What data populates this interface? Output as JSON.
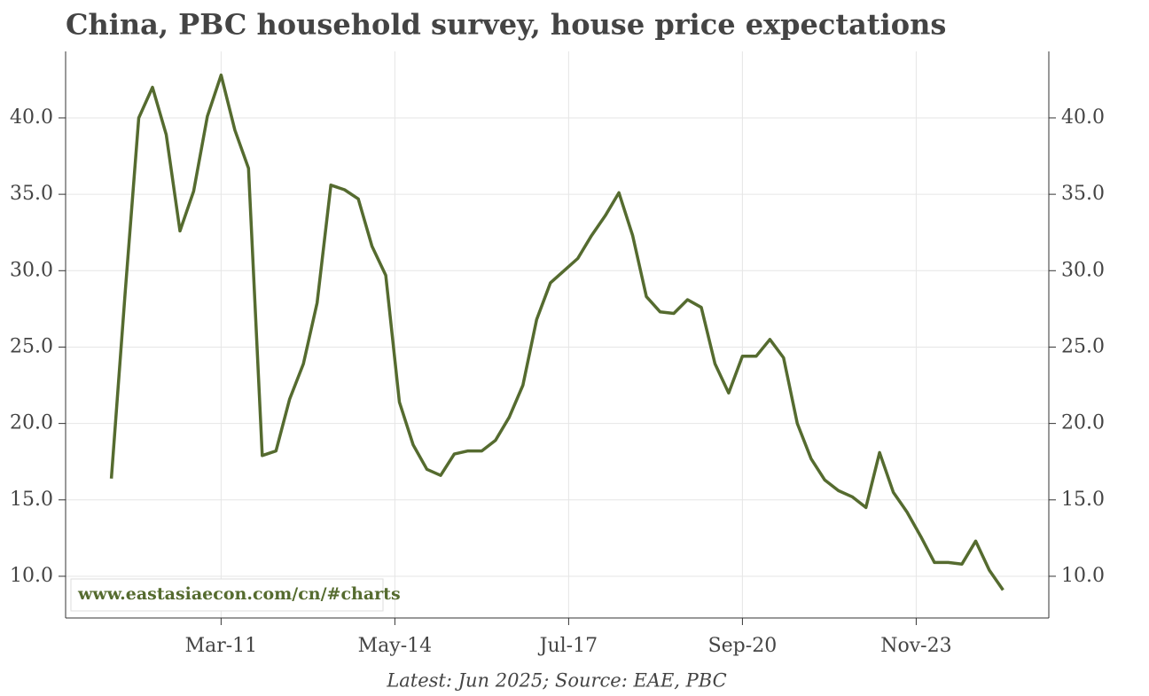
{
  "chart_data": {
    "type": "line",
    "title": "China, PBC household survey, house price expectations",
    "footer": "Latest: Jun 2025; Source: EAE, PBC",
    "watermark": "www.eastasiaecon.com/cn/#charts",
    "x": [
      "2009-03",
      "2009-06",
      "2009-09",
      "2009-12",
      "2010-03",
      "2010-06",
      "2010-09",
      "2010-12",
      "2011-03",
      "2011-06",
      "2011-09",
      "2011-12",
      "2012-03",
      "2012-06",
      "2012-09",
      "2012-12",
      "2013-03",
      "2013-06",
      "2013-09",
      "2013-12",
      "2014-03",
      "2014-06",
      "2014-09",
      "2014-12",
      "2015-03",
      "2015-06",
      "2015-09",
      "2015-12",
      "2016-03",
      "2016-06",
      "2016-09",
      "2016-12",
      "2017-03",
      "2017-06",
      "2017-09",
      "2017-12",
      "2018-03",
      "2018-06",
      "2018-09",
      "2018-12",
      "2019-03",
      "2019-06",
      "2019-09",
      "2019-12",
      "2020-03",
      "2020-06",
      "2020-09",
      "2020-12",
      "2021-03",
      "2021-06",
      "2021-09",
      "2021-12",
      "2022-03",
      "2022-06",
      "2022-09",
      "2022-12",
      "2023-03",
      "2023-06",
      "2023-09",
      "2023-12",
      "2024-03",
      "2024-06",
      "2024-09",
      "2024-12",
      "2025-03",
      "2025-06"
    ],
    "series": [
      {
        "name": "House price expectations",
        "color": "#556b2f",
        "values": [
          16.4,
          28.5,
          40.0,
          42.0,
          38.9,
          32.6,
          35.2,
          40.1,
          42.8,
          39.2,
          36.7,
          17.9,
          18.2,
          21.6,
          23.9,
          27.9,
          35.6,
          35.3,
          34.7,
          31.6,
          29.7,
          21.4,
          18.6,
          17.0,
          16.6,
          18.0,
          18.2,
          18.2,
          18.9,
          20.4,
          22.5,
          26.8,
          29.2,
          30.0,
          30.8,
          32.3,
          33.6,
          35.1,
          32.3,
          28.3,
          27.3,
          27.2,
          28.1,
          27.6,
          23.9,
          22.0,
          24.4,
          24.4,
          25.5,
          24.3,
          20.0,
          17.7,
          16.3,
          15.6,
          15.2,
          14.5,
          18.1,
          15.5,
          14.2,
          12.6,
          10.9,
          10.9,
          10.8,
          12.3,
          10.4,
          9.1
        ]
      }
    ],
    "xlim": [
      "2008-05",
      "2026-04"
    ],
    "xticks": [
      {
        "value": "2011-03",
        "label": "Mar-11"
      },
      {
        "value": "2014-05",
        "label": "May-14"
      },
      {
        "value": "2017-07",
        "label": "Jul-17"
      },
      {
        "value": "2020-09",
        "label": "Sep-20"
      },
      {
        "value": "2023-11",
        "label": "Nov-23"
      }
    ],
    "ylim": [
      7.27,
      44.35
    ],
    "yticks": [
      {
        "value": 10,
        "label": "10.0"
      },
      {
        "value": 15,
        "label": "15.0"
      },
      {
        "value": 20,
        "label": "20.0"
      },
      {
        "value": 25,
        "label": "25.0"
      },
      {
        "value": 30,
        "label": "30.0"
      },
      {
        "value": 35,
        "label": "35.0"
      },
      {
        "value": 40,
        "label": "40.0"
      }
    ],
    "grid": true
  }
}
